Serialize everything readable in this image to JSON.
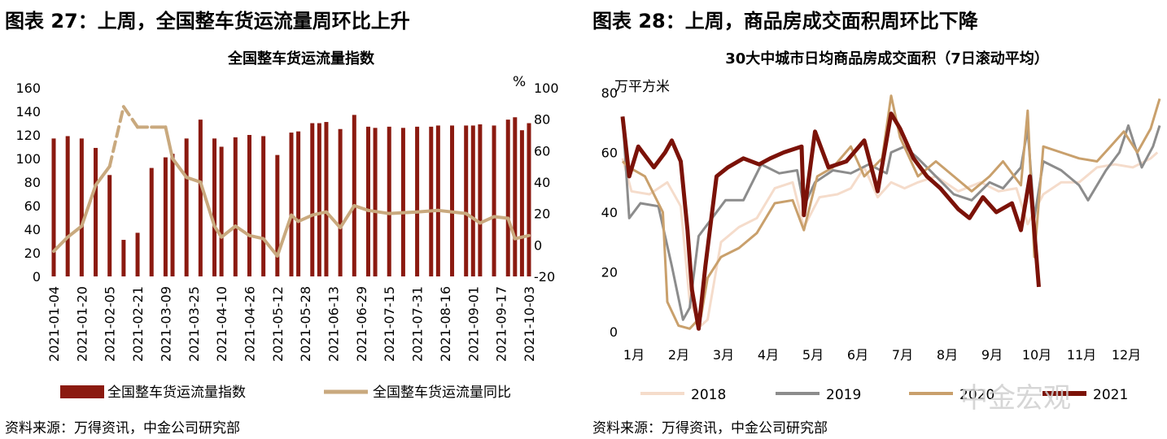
{
  "left": {
    "panel_title": "图表 27：上周，全国整车货运流量周环比上升",
    "source": "资料来源：万得资讯，中金公司研究部"
  },
  "right": {
    "panel_title": "图表 28：上周，商品房成交面积周环比下降",
    "source": "资料来源：万得资讯，中金公司研究部"
  },
  "watermark": "中金宏观",
  "colors": {
    "bar": "#8b1a10",
    "yoy": "#c9a97e",
    "c2018": "#f5dccb",
    "c2019": "#8c8c8c",
    "c2020": "#c9a06c",
    "c2021": "#7b1208",
    "negative_tick": "#e02020"
  },
  "chart_data": [
    {
      "type": "bar",
      "title": "全国整车货运流量指数",
      "y2_unit": "%",
      "dates": [
        "2021-01-04",
        "2021-01-08",
        "2021-01-12",
        "2021-01-16",
        "2021-01-20",
        "2021-01-24",
        "2021-01-28",
        "2021-02-01",
        "2021-02-05",
        "2021-02-09",
        "2021-02-13",
        "2021-02-17",
        "2021-02-21",
        "2021-02-25",
        "2021-03-01",
        "2021-03-05",
        "2021-03-09",
        "2021-03-13",
        "2021-03-17",
        "2021-03-21",
        "2021-03-25",
        "2021-03-29",
        "2021-04-02",
        "2021-04-06",
        "2021-04-10",
        "2021-04-14",
        "2021-04-18",
        "2021-04-22",
        "2021-04-26",
        "2021-04-30",
        "2021-05-04",
        "2021-05-08",
        "2021-05-12",
        "2021-05-16",
        "2021-05-20",
        "2021-05-24",
        "2021-05-28",
        "2021-06-01",
        "2021-06-05",
        "2021-06-09",
        "2021-06-13",
        "2021-06-17",
        "2021-06-21",
        "2021-06-25",
        "2021-06-29",
        "2021-07-03",
        "2021-07-07",
        "2021-07-11",
        "2021-07-15",
        "2021-07-19",
        "2021-07-23",
        "2021-07-27",
        "2021-07-31",
        "2021-08-04",
        "2021-08-08",
        "2021-08-12",
        "2021-08-16",
        "2021-08-20",
        "2021-08-24",
        "2021-08-28",
        "2021-09-01",
        "2021-09-05",
        "2021-09-09",
        "2021-09-13",
        "2021-09-17",
        "2021-09-21",
        "2021-09-25",
        "2021-09-29",
        "2021-10-03"
      ],
      "tick_labels": [
        "2021-01-04",
        "2021-01-20",
        "2021-02-05",
        "2021-02-21",
        "2021-03-09",
        "2021-03-25",
        "2021-04-10",
        "2021-04-26",
        "2021-05-12",
        "2021-05-28",
        "2021-06-13",
        "2021-06-29",
        "2021-07-15",
        "2021-07-31",
        "2021-08-16",
        "2021-09-01",
        "2021-09-17",
        "2021-10-03"
      ],
      "bars": [
        {
          "date": "2021-01-04",
          "value": 117
        },
        {
          "date": "2021-01-12",
          "value": 119
        },
        {
          "date": "2021-01-20",
          "value": 117
        },
        {
          "date": "2021-01-28",
          "value": 109
        },
        {
          "date": "2021-02-05",
          "value": 86
        },
        {
          "date": "2021-02-13",
          "value": 31
        },
        {
          "date": "2021-02-21",
          "value": 37
        },
        {
          "date": "2021-03-01",
          "value": 92
        },
        {
          "date": "2021-03-09",
          "value": 101
        },
        {
          "date": "2021-03-13",
          "value": 104
        },
        {
          "date": "2021-03-21",
          "value": 117
        },
        {
          "date": "2021-03-29",
          "value": 133
        },
        {
          "date": "2021-04-06",
          "value": 117
        },
        {
          "date": "2021-04-10",
          "value": 110
        },
        {
          "date": "2021-04-18",
          "value": 118
        },
        {
          "date": "2021-04-26",
          "value": 120
        },
        {
          "date": "2021-05-04",
          "value": 119
        },
        {
          "date": "2021-05-12",
          "value": 103
        },
        {
          "date": "2021-05-20",
          "value": 122
        },
        {
          "date": "2021-05-24",
          "value": 123
        },
        {
          "date": "2021-06-01",
          "value": 130
        },
        {
          "date": "2021-06-05",
          "value": 130
        },
        {
          "date": "2021-06-09",
          "value": 131
        },
        {
          "date": "2021-06-17",
          "value": 125
        },
        {
          "date": "2021-06-25",
          "value": 137
        },
        {
          "date": "2021-07-03",
          "value": 127
        },
        {
          "date": "2021-07-07",
          "value": 126
        },
        {
          "date": "2021-07-15",
          "value": 127
        },
        {
          "date": "2021-07-23",
          "value": 126
        },
        {
          "date": "2021-07-31",
          "value": 127
        },
        {
          "date": "2021-08-08",
          "value": 127
        },
        {
          "date": "2021-08-12",
          "value": 128
        },
        {
          "date": "2021-08-20",
          "value": 128
        },
        {
          "date": "2021-08-28",
          "value": 128
        },
        {
          "date": "2021-09-01",
          "value": 128
        },
        {
          "date": "2021-09-05",
          "value": 129
        },
        {
          "date": "2021-09-13",
          "value": 128
        },
        {
          "date": "2021-09-21",
          "value": 133
        },
        {
          "date": "2021-09-25",
          "value": 135
        },
        {
          "date": "2021-09-29",
          "value": 124
        },
        {
          "date": "2021-10-03",
          "value": 130
        }
      ],
      "yoy_points": [
        {
          "date": "2021-01-04",
          "value": -4
        },
        {
          "date": "2021-01-12",
          "value": 5
        },
        {
          "date": "2021-01-20",
          "value": 12
        },
        {
          "date": "2021-01-28",
          "value": 38
        },
        {
          "date": "2021-02-05",
          "value": 50,
          "dashed": true
        },
        {
          "date": "2021-02-13",
          "value": 88,
          "dashed": true
        },
        {
          "date": "2021-02-21",
          "value": 75,
          "dashed": true
        },
        {
          "date": "2021-03-01",
          "value": 75,
          "dashed": true
        },
        {
          "date": "2021-03-09",
          "value": 75
        },
        {
          "date": "2021-03-13",
          "value": 55
        },
        {
          "date": "2021-03-21",
          "value": 43
        },
        {
          "date": "2021-03-29",
          "value": 40
        },
        {
          "date": "2021-04-06",
          "value": 12
        },
        {
          "date": "2021-04-10",
          "value": 5
        },
        {
          "date": "2021-04-18",
          "value": 12
        },
        {
          "date": "2021-04-26",
          "value": 6
        },
        {
          "date": "2021-05-04",
          "value": 4
        },
        {
          "date": "2021-05-12",
          "value": -7
        },
        {
          "date": "2021-05-20",
          "value": 19
        },
        {
          "date": "2021-05-24",
          "value": 15
        },
        {
          "date": "2021-06-01",
          "value": 19
        },
        {
          "date": "2021-06-09",
          "value": 21
        },
        {
          "date": "2021-06-17",
          "value": 11
        },
        {
          "date": "2021-06-25",
          "value": 25
        },
        {
          "date": "2021-07-03",
          "value": 22
        },
        {
          "date": "2021-07-15",
          "value": 20
        },
        {
          "date": "2021-07-31",
          "value": 21
        },
        {
          "date": "2021-08-12",
          "value": 22
        },
        {
          "date": "2021-08-28",
          "value": 20
        },
        {
          "date": "2021-09-05",
          "value": 14
        },
        {
          "date": "2021-09-13",
          "value": 18
        },
        {
          "date": "2021-09-21",
          "value": 17
        },
        {
          "date": "2021-09-25",
          "value": 4
        },
        {
          "date": "2021-09-29",
          "value": 5
        },
        {
          "date": "2021-10-03",
          "value": 6
        }
      ],
      "ylim": [
        0,
        160
      ],
      "yticks": [
        0,
        20,
        40,
        60,
        80,
        100,
        120,
        140,
        160
      ],
      "y2lim": [
        -20,
        100
      ],
      "y2ticks": [
        -20,
        0,
        20,
        40,
        60,
        80,
        100
      ],
      "legend": {
        "position": "bottom",
        "bar": "全国整车货运流量指数",
        "line": "全国整车货运流量同比"
      }
    },
    {
      "type": "line",
      "title": "30大中城市日均商品房成交面积（7日滚动平均）",
      "ylabel": "万平方米",
      "x_labels": [
        "1月",
        "2月",
        "3月",
        "4月",
        "5月",
        "6月",
        "7月",
        "8月",
        "9月",
        "10月",
        "11月",
        "12月"
      ],
      "ylim": [
        0,
        80
      ],
      "yticks": [
        0,
        20,
        40,
        60,
        80
      ],
      "series": [
        {
          "name": "2018",
          "points": [
            [
              1,
              58
            ],
            [
              1.2,
              47
            ],
            [
              1.6,
              46
            ],
            [
              2.0,
              50
            ],
            [
              2.3,
              42
            ],
            [
              2.5,
              10
            ],
            [
              2.75,
              2
            ],
            [
              2.9,
              4
            ],
            [
              3.2,
              30
            ],
            [
              3.6,
              35
            ],
            [
              4.0,
              38
            ],
            [
              4.4,
              48
            ],
            [
              4.8,
              50
            ],
            [
              5.05,
              35
            ],
            [
              5.4,
              45
            ],
            [
              5.8,
              46
            ],
            [
              6.1,
              48
            ],
            [
              6.4,
              55
            ],
            [
              6.7,
              45
            ],
            [
              7.0,
              50
            ],
            [
              7.3,
              48
            ],
            [
              7.6,
              50
            ],
            [
              8.0,
              52
            ],
            [
              8.5,
              47
            ],
            [
              9.0,
              50
            ],
            [
              9.4,
              47
            ],
            [
              9.8,
              48
            ],
            [
              10.05,
              36
            ],
            [
              10.4,
              46
            ],
            [
              10.8,
              50
            ],
            [
              11.2,
              50
            ],
            [
              11.6,
              55
            ],
            [
              12.0,
              56
            ],
            [
              12.4,
              55
            ],
            [
              12.8,
              58
            ],
            [
              12.95,
              60
            ]
          ]
        },
        {
          "name": "2019",
          "points": [
            [
              1,
              72
            ],
            [
              1.15,
              38
            ],
            [
              1.4,
              43
            ],
            [
              1.8,
              42
            ],
            [
              2.1,
              22
            ],
            [
              2.35,
              4
            ],
            [
              2.5,
              8
            ],
            [
              2.7,
              32
            ],
            [
              3.0,
              38
            ],
            [
              3.3,
              44
            ],
            [
              3.7,
              44
            ],
            [
              4.1,
              56
            ],
            [
              4.5,
              53
            ],
            [
              4.9,
              54
            ],
            [
              5.05,
              42
            ],
            [
              5.3,
              50
            ],
            [
              5.7,
              54
            ],
            [
              6.1,
              53
            ],
            [
              6.5,
              56
            ],
            [
              6.9,
              53
            ],
            [
              7.0,
              60
            ],
            [
              7.3,
              62
            ],
            [
              7.6,
              58
            ],
            [
              8.0,
              52
            ],
            [
              8.4,
              46
            ],
            [
              8.8,
              44
            ],
            [
              9.2,
              50
            ],
            [
              9.5,
              48
            ],
            [
              9.9,
              55
            ],
            [
              10.05,
              68
            ],
            [
              10.2,
              38
            ],
            [
              10.4,
              57
            ],
            [
              10.8,
              54
            ],
            [
              11.2,
              49
            ],
            [
              11.4,
              44
            ],
            [
              11.8,
              54
            ],
            [
              12.1,
              60
            ],
            [
              12.3,
              69
            ],
            [
              12.6,
              55
            ],
            [
              12.85,
              62
            ],
            [
              13.0,
              69
            ]
          ]
        },
        {
          "name": "2020",
          "points": [
            [
              1,
              57
            ],
            [
              1.15,
              55
            ],
            [
              1.5,
              52
            ],
            [
              1.9,
              40
            ],
            [
              2.0,
              10
            ],
            [
              2.25,
              2
            ],
            [
              2.5,
              1
            ],
            [
              2.75,
              5
            ],
            [
              2.9,
              18
            ],
            [
              3.2,
              25
            ],
            [
              3.6,
              28
            ],
            [
              4.0,
              33
            ],
            [
              4.4,
              43
            ],
            [
              4.8,
              44
            ],
            [
              5.05,
              34
            ],
            [
              5.35,
              52
            ],
            [
              5.7,
              55
            ],
            [
              6.1,
              62
            ],
            [
              6.4,
              52
            ],
            [
              6.8,
              58
            ],
            [
              7.0,
              79
            ],
            [
              7.2,
              65
            ],
            [
              7.6,
              52
            ],
            [
              8.0,
              57
            ],
            [
              8.4,
              52
            ],
            [
              8.8,
              47
            ],
            [
              9.2,
              52
            ],
            [
              9.5,
              57
            ],
            [
              9.9,
              49
            ],
            [
              10.05,
              74
            ],
            [
              10.2,
              25
            ],
            [
              10.4,
              62
            ],
            [
              10.8,
              60
            ],
            [
              11.2,
              58
            ],
            [
              11.6,
              57
            ],
            [
              11.9,
              62
            ],
            [
              12.2,
              67
            ],
            [
              12.5,
              60
            ],
            [
              12.8,
              68
            ],
            [
              13.0,
              78
            ]
          ]
        },
        {
          "name": "2021",
          "points": [
            [
              1,
              72
            ],
            [
              1.15,
              52
            ],
            [
              1.35,
              62
            ],
            [
              1.7,
              55
            ],
            [
              1.95,
              60
            ],
            [
              2.1,
              64
            ],
            [
              2.3,
              57
            ],
            [
              2.45,
              34
            ],
            [
              2.55,
              14
            ],
            [
              2.7,
              1
            ],
            [
              2.85,
              22
            ],
            [
              3.1,
              52
            ],
            [
              3.35,
              55
            ],
            [
              3.7,
              58
            ],
            [
              4.05,
              56
            ],
            [
              4.3,
              58
            ],
            [
              4.6,
              60
            ],
            [
              5.0,
              62
            ],
            [
              5.05,
              39
            ],
            [
              5.3,
              67
            ],
            [
              5.6,
              55
            ],
            [
              6.0,
              57
            ],
            [
              6.4,
              64
            ],
            [
              6.7,
              47
            ],
            [
              7.0,
              73
            ],
            [
              7.2,
              68
            ],
            [
              7.5,
              58
            ],
            [
              7.8,
              52
            ],
            [
              8.1,
              48
            ],
            [
              8.5,
              41
            ],
            [
              8.75,
              38
            ],
            [
              9.05,
              45
            ],
            [
              9.35,
              40
            ],
            [
              9.7,
              43
            ],
            [
              9.9,
              34
            ],
            [
              10.1,
              52
            ],
            [
              10.3,
              15
            ]
          ]
        }
      ],
      "legend": {
        "position": "bottom",
        "items": [
          "2018",
          "2019",
          "2020",
          "2021"
        ]
      }
    }
  ]
}
